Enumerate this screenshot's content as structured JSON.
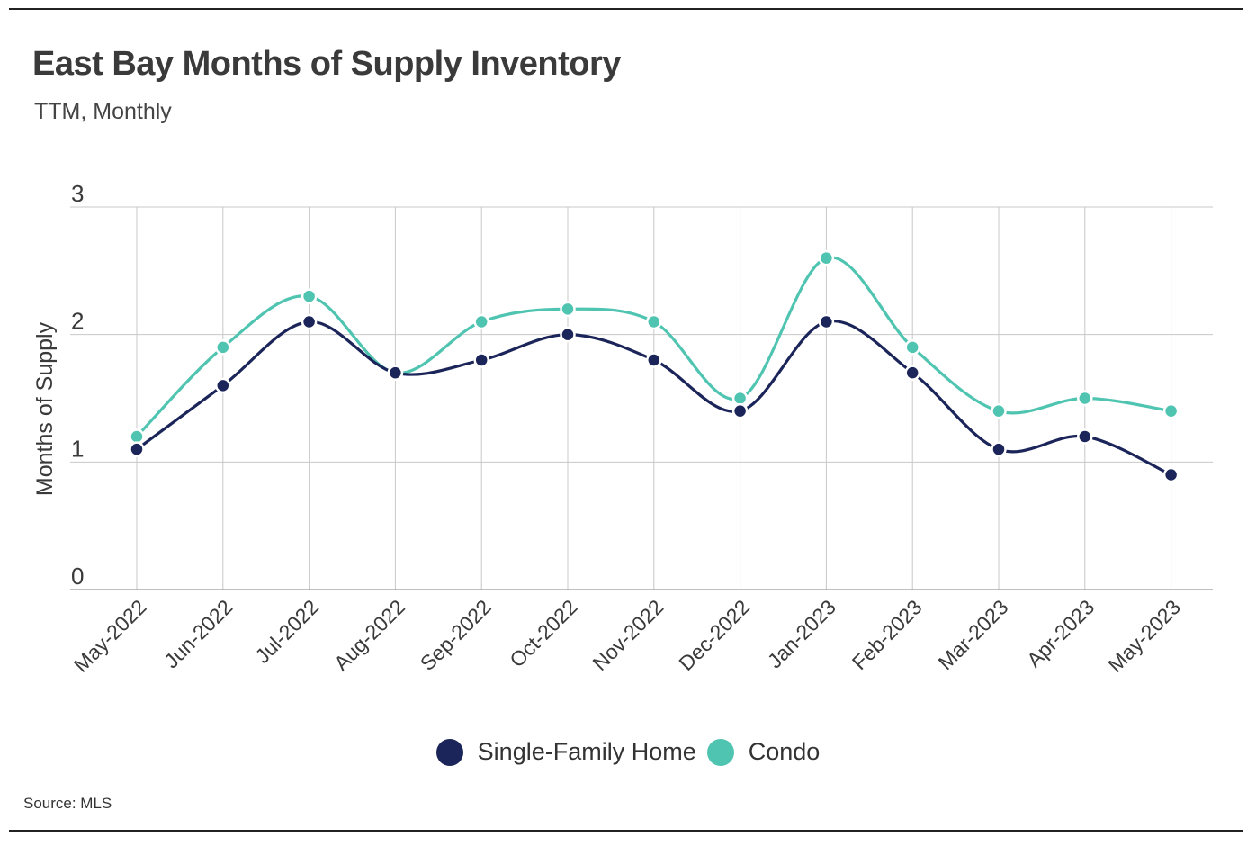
{
  "title": "East Bay Months of Supply Inventory",
  "subtitle": "TTM, Monthly",
  "source": "Source:  MLS",
  "colors": {
    "single_family": "#1b2559",
    "condo": "#4fc4b0",
    "grid": "#c8c8c8",
    "axis": "#999999"
  },
  "chart_data": {
    "type": "line",
    "title": "East Bay Months of Supply Inventory",
    "subtitle": "TTM, Monthly",
    "xlabel": "",
    "ylabel": "Months of Supply",
    "ylim": [
      0,
      3
    ],
    "yticks": [
      0,
      1,
      2,
      3
    ],
    "grid": true,
    "legend_position": "bottom-center",
    "categories": [
      "May-2022",
      "Jun-2022",
      "Jul-2022",
      "Aug-2022",
      "Sep-2022",
      "Oct-2022",
      "Nov-2022",
      "Dec-2022",
      "Jan-2023",
      "Feb-2023",
      "Mar-2023",
      "Apr-2023",
      "May-2023"
    ],
    "series": [
      {
        "name": "Single-Family Home",
        "color": "#1b2559",
        "values": [
          1.1,
          1.6,
          2.1,
          1.7,
          1.8,
          2.0,
          1.8,
          1.4,
          2.1,
          1.7,
          1.1,
          1.2,
          0.9
        ]
      },
      {
        "name": "Condo",
        "color": "#4fc4b0",
        "values": [
          1.2,
          1.9,
          2.3,
          1.7,
          2.1,
          2.2,
          2.1,
          1.5,
          2.6,
          1.9,
          1.4,
          1.5,
          1.4
        ]
      }
    ]
  }
}
